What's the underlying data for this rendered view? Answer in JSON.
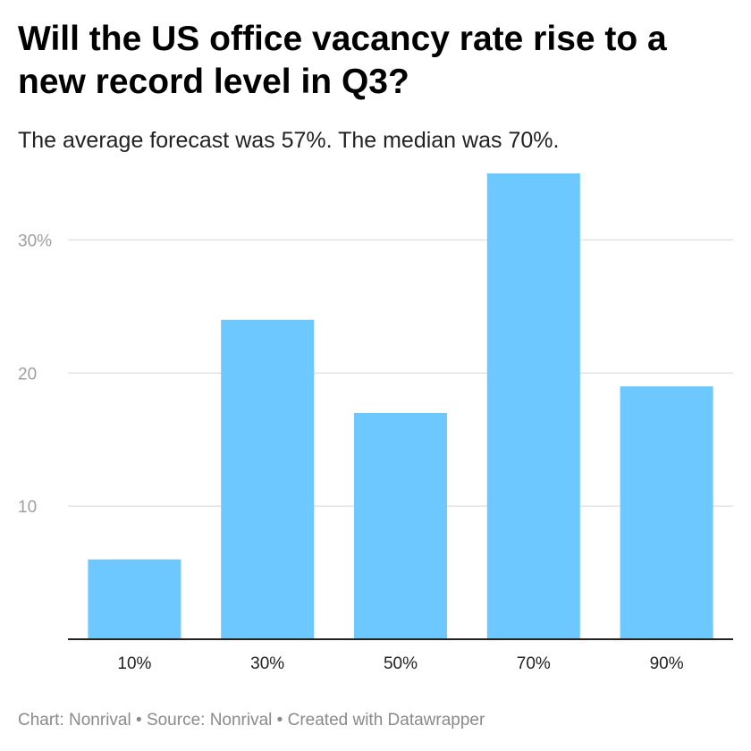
{
  "title": "Will the US office vacancy rate rise to a new record level in Q3?",
  "subtitle": "The average forecast was 57%. The median was 70%.",
  "footer": {
    "chart_credit": "Chart: Nonrival",
    "source": "Source: Nonrival",
    "tool": "Created with Datawrapper",
    "separator": " • "
  },
  "colors": {
    "bar": "#6cc8ff",
    "gridline": "#e3e3e3",
    "baseline": "#222222",
    "axis_label": "#a0a0a0"
  },
  "chart_data": {
    "type": "bar",
    "categories": [
      "10%",
      "30%",
      "50%",
      "70%",
      "90%"
    ],
    "values": [
      6,
      24,
      17,
      35,
      19
    ],
    "ylim": [
      0,
      35
    ],
    "yticks": [
      {
        "value": 10,
        "label": "10"
      },
      {
        "value": 20,
        "label": "20"
      },
      {
        "value": 30,
        "label": "30%"
      }
    ],
    "grid": true,
    "legend": "none"
  }
}
